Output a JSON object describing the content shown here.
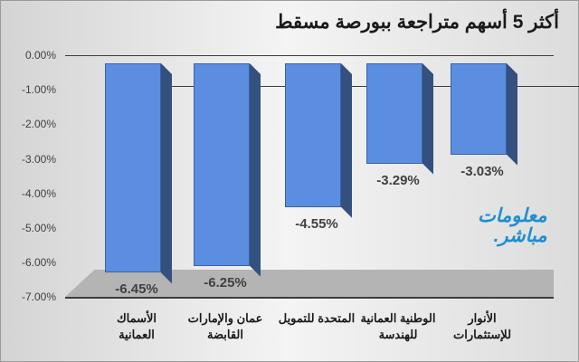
{
  "title": "أكثر 5 أسهم متراجعة ببورصة مسقط",
  "y_axis": {
    "ticks": [
      "0.00%",
      "-1.00%",
      "-2.00%",
      "-3.00%",
      "-4.00%",
      "-5.00%",
      "-6.00%",
      "-7.00%"
    ]
  },
  "bars": [
    {
      "category_line1": "الأسماك",
      "category_line2": "العمانية",
      "value": -6.45,
      "label": "-6.45%"
    },
    {
      "category_line1": "عمان والإمارات",
      "category_line2": "القابضة",
      "value": -6.25,
      "label": "-6.25%"
    },
    {
      "category_line1": "المتحدة للتمويل",
      "category_line2": "",
      "value": -4.55,
      "label": "-4.55%"
    },
    {
      "category_line1": "الوطنية العمانية",
      "category_line2": "للهندسة",
      "value": -3.29,
      "label": "-3.29%"
    },
    {
      "category_line1": "الأنوار",
      "category_line2": "للإستثمارات",
      "value": -3.03,
      "label": "-3.03%"
    }
  ],
  "watermark": {
    "line1": "معلومات",
    "line2": "مباشر."
  },
  "colors": {
    "bar_front": "#5b8ee0",
    "bar_side": "#34507e",
    "bar_top": "#4a78c8"
  },
  "chart_data": {
    "type": "bar",
    "title": "أكثر 5 أسهم متراجعة ببورصة مسقط",
    "categories": [
      "الأسماك العمانية",
      "عمان والإمارات القابضة",
      "المتحدة للتمويل",
      "الوطنية العمانية للهندسة",
      "الأنوار للإستثمارات"
    ],
    "values": [
      -6.45,
      -6.25,
      -4.55,
      -3.29,
      -3.03
    ],
    "xlabel": "",
    "ylabel": "",
    "ylim": [
      -7,
      0
    ],
    "y_tick_format": "percent",
    "data_labels": [
      "-6.45%",
      "-6.25%",
      "-4.55%",
      "-3.29%",
      "-3.03%"
    ],
    "grid": true,
    "style": "3d-column"
  }
}
